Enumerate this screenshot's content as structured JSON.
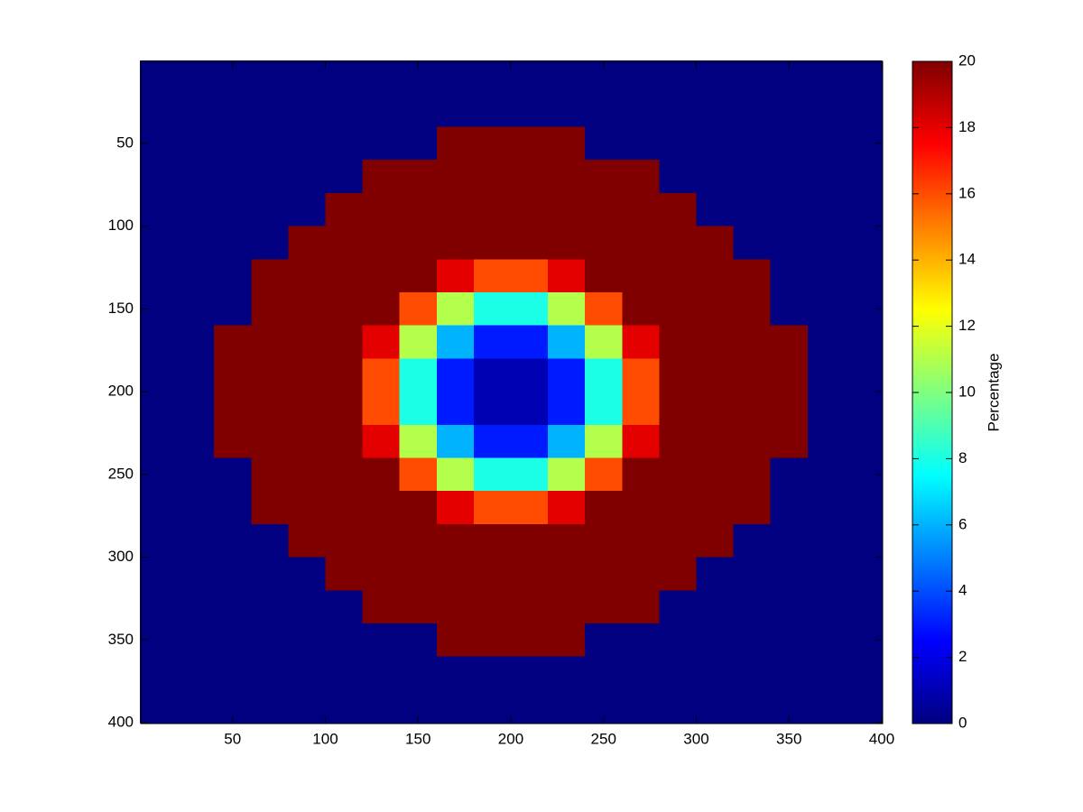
{
  "chart_data": {
    "type": "heatmap",
    "colormap": "jet",
    "x": [
      10,
      30,
      50,
      70,
      90,
      110,
      130,
      150,
      170,
      190,
      210,
      230,
      250,
      270,
      290,
      310,
      330,
      350,
      370,
      390
    ],
    "y": [
      10,
      30,
      50,
      70,
      90,
      110,
      130,
      150,
      170,
      190,
      210,
      230,
      250,
      270,
      290,
      310,
      330,
      350,
      370,
      390
    ],
    "z": [
      [
        0,
        0,
        0,
        0,
        0,
        0,
        0,
        0,
        0,
        0,
        0,
        0,
        0,
        0,
        0,
        0,
        0,
        0,
        0,
        0
      ],
      [
        0,
        0,
        0,
        0,
        0,
        0,
        0,
        0,
        0,
        0,
        0,
        0,
        0,
        0,
        0,
        0,
        0,
        0,
        0,
        0
      ],
      [
        0,
        0,
        0,
        0,
        0,
        0,
        0,
        0,
        20,
        20,
        20,
        20,
        0,
        0,
        0,
        0,
        0,
        0,
        0,
        0
      ],
      [
        0,
        0,
        0,
        0,
        0,
        0,
        20,
        20,
        20,
        20,
        20,
        20,
        20,
        20,
        0,
        0,
        0,
        0,
        0,
        0
      ],
      [
        0,
        0,
        0,
        0,
        0,
        20,
        20,
        20,
        20,
        20,
        20,
        20,
        20,
        20,
        20,
        0,
        0,
        0,
        0,
        0
      ],
      [
        0,
        0,
        0,
        0,
        20,
        20,
        20,
        20,
        20,
        20,
        20,
        20,
        20,
        20,
        20,
        20,
        0,
        0,
        0,
        0
      ],
      [
        0,
        0,
        0,
        20,
        20,
        20,
        20,
        20,
        18,
        16,
        16,
        18,
        20,
        20,
        20,
        20,
        20,
        0,
        0,
        0
      ],
      [
        0,
        0,
        0,
        20,
        20,
        20,
        20,
        16,
        11,
        8,
        8,
        11,
        16,
        20,
        20,
        20,
        20,
        0,
        0,
        0
      ],
      [
        0,
        0,
        20,
        20,
        20,
        20,
        18,
        11,
        6,
        3,
        3,
        6,
        11,
        18,
        20,
        20,
        20,
        20,
        0,
        0
      ],
      [
        0,
        0,
        20,
        20,
        20,
        20,
        16,
        8,
        3,
        1,
        1,
        3,
        8,
        16,
        20,
        20,
        20,
        20,
        0,
        0
      ],
      [
        0,
        0,
        20,
        20,
        20,
        20,
        16,
        8,
        3,
        1,
        1,
        3,
        8,
        16,
        20,
        20,
        20,
        20,
        0,
        0
      ],
      [
        0,
        0,
        20,
        20,
        20,
        20,
        18,
        11,
        6,
        3,
        3,
        6,
        11,
        18,
        20,
        20,
        20,
        20,
        0,
        0
      ],
      [
        0,
        0,
        0,
        20,
        20,
        20,
        20,
        16,
        11,
        8,
        8,
        11,
        16,
        20,
        20,
        20,
        20,
        0,
        0,
        0
      ],
      [
        0,
        0,
        0,
        20,
        20,
        20,
        20,
        20,
        18,
        16,
        16,
        18,
        20,
        20,
        20,
        20,
        20,
        0,
        0,
        0
      ],
      [
        0,
        0,
        0,
        0,
        20,
        20,
        20,
        20,
        20,
        20,
        20,
        20,
        20,
        20,
        20,
        20,
        0,
        0,
        0,
        0
      ],
      [
        0,
        0,
        0,
        0,
        0,
        20,
        20,
        20,
        20,
        20,
        20,
        20,
        20,
        20,
        20,
        0,
        0,
        0,
        0,
        0
      ],
      [
        0,
        0,
        0,
        0,
        0,
        0,
        20,
        20,
        20,
        20,
        20,
        20,
        20,
        20,
        0,
        0,
        0,
        0,
        0,
        0
      ],
      [
        0,
        0,
        0,
        0,
        0,
        0,
        0,
        0,
        20,
        20,
        20,
        20,
        0,
        0,
        0,
        0,
        0,
        0,
        0,
        0
      ],
      [
        0,
        0,
        0,
        0,
        0,
        0,
        0,
        0,
        0,
        0,
        0,
        0,
        0,
        0,
        0,
        0,
        0,
        0,
        0,
        0
      ],
      [
        0,
        0,
        0,
        0,
        0,
        0,
        0,
        0,
        0,
        0,
        0,
        0,
        0,
        0,
        0,
        0,
        0,
        0,
        0,
        0
      ]
    ],
    "xlim": [
      0.5,
      400.5
    ],
    "ylim": [
      0.5,
      400.5
    ],
    "y_reversed": true,
    "xticks": [
      50,
      100,
      150,
      200,
      250,
      300,
      350,
      400
    ],
    "yticks": [
      50,
      100,
      150,
      200,
      250,
      300,
      350,
      400
    ],
    "colorbar": {
      "label": "Percentage",
      "lim": [
        0,
        20
      ],
      "ticks": [
        0,
        2,
        4,
        6,
        8,
        10,
        12,
        14,
        16,
        18,
        20
      ]
    }
  }
}
